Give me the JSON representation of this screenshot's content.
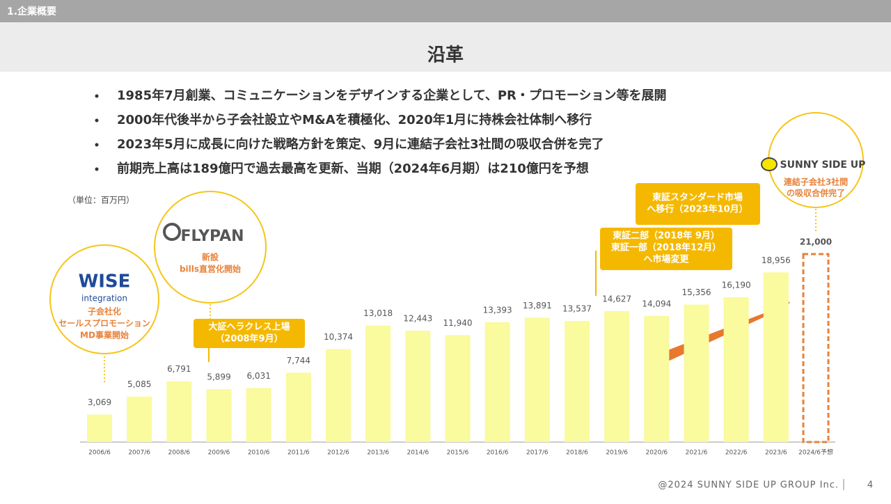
{
  "header": {
    "section": "1.企業概要",
    "title": "沿革"
  },
  "bullets": [
    "1985年7月創業、コミュニケーションをデザインする企業として、PR・プロモーション等を展開",
    "2000年代後半から子会社設立やM&Aを積極化、2020年1月に持株会社体制へ移行",
    "2023年5月に成長に向けた戦略方針を策定、9月に連結子会社3社間の吸収合併を完了",
    "前期売上高は189億円で過去最高を更新、当期（2024年6月期）は210億円を予想"
  ],
  "chart_data": {
    "type": "bar",
    "unit_note": "（単位：百万円）",
    "categories": [
      "2006/6",
      "2007/6",
      "2008/6",
      "2009/6",
      "2010/6",
      "2011/6",
      "2012/6",
      "2013/6",
      "2014/6",
      "2015/6",
      "2016/6",
      "2017/6",
      "2018/6",
      "2019/6",
      "2020/6",
      "2021/6",
      "2022/6",
      "2023/6",
      "2024/6予想"
    ],
    "values": [
      3069,
      5085,
      6791,
      5899,
      6031,
      7744,
      10374,
      13018,
      12443,
      11940,
      13393,
      13891,
      13537,
      14627,
      14094,
      15356,
      16190,
      18956,
      21000
    ],
    "value_labels": [
      "3,069",
      "5,085",
      "6,791",
      "5,899",
      "6,031",
      "7,744",
      "10,374",
      "13,018",
      "12,443",
      "11,940",
      "13,393",
      "13,891",
      "13,537",
      "14,627",
      "14,094",
      "15,356",
      "16,190",
      "18,956",
      "21,000"
    ],
    "color": "#fafa9e",
    "dashed": [
      false,
      false,
      false,
      false,
      false,
      false,
      false,
      false,
      false,
      false,
      false,
      false,
      false,
      false,
      false,
      false,
      false,
      false,
      true
    ],
    "dash_color": "#e8823a"
  },
  "callouts": {
    "wise": {
      "logo": "WISE",
      "logo_sub": "integration",
      "lines": [
        "子会社化",
        "セールスプロモーション",
        "MD事業開始"
      ]
    },
    "flypan": {
      "logo": "FLYPAN",
      "lines": [
        "新設",
        "bills直営化開始"
      ]
    },
    "hercules": {
      "lines": [
        "大証ヘラクレス上場",
        "（2008年9月）"
      ]
    },
    "tse": {
      "lines": [
        "東証二部（2018年 9月）",
        "東証一部（2018年12月）",
        "へ市場変更"
      ]
    },
    "standard": {
      "lines": [
        "東証スタンダード市場",
        "へ移行（2023年10月）"
      ]
    },
    "ssu": {
      "logo": "SUNNY SIDE UP",
      "lines": [
        "連結子会社3社間",
        "の吸収合併完了"
      ]
    }
  },
  "footer": {
    "copyright": "@2024 SUNNY SIDE UP GROUP Inc.",
    "page": "4"
  }
}
